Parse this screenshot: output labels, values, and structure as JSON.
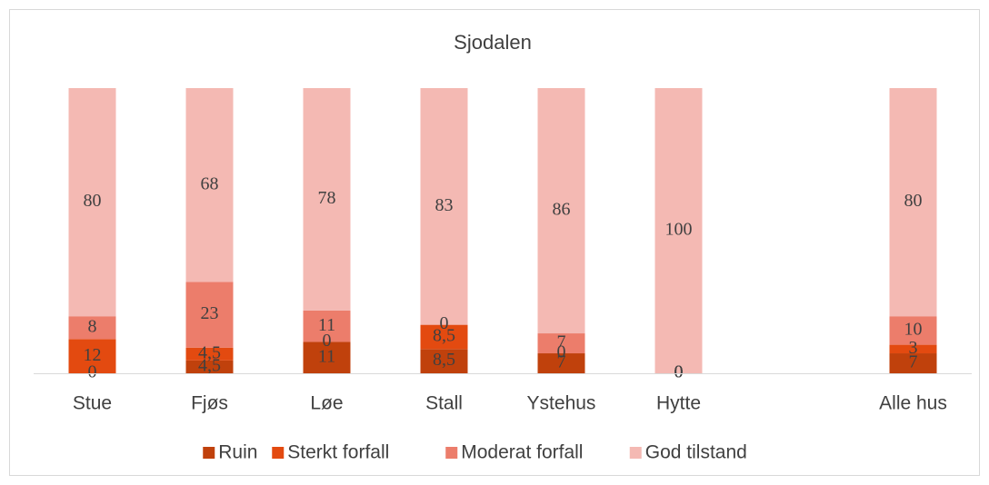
{
  "chart_data": {
    "type": "stacked_bar",
    "title": "Sjodalen",
    "categories": [
      "Stue",
      "Fjøs",
      "Løe",
      "Stall",
      "Ystehus",
      "Hytte",
      null,
      "Alle hus"
    ],
    "ylim": [
      0,
      100
    ],
    "series": [
      {
        "name": "Ruin",
        "color": "#c0410c",
        "values": [
          0,
          4.5,
          11,
          8.5,
          7,
          0,
          null,
          7
        ],
        "value_labels": [
          "0",
          "4,5",
          "11",
          "8,5",
          "7",
          "0",
          null,
          "7"
        ]
      },
      {
        "name": "Sterkt forfall",
        "color": "#e34a10",
        "values": [
          12,
          4.5,
          0,
          8.5,
          0,
          0,
          null,
          3
        ],
        "value_labels": [
          "12",
          "4,5",
          "0",
          "8,5",
          "0",
          "0",
          null,
          "3"
        ]
      },
      {
        "name": "Moderat forfall",
        "color": "#ec7d6b",
        "values": [
          8,
          23,
          11,
          0,
          7,
          0,
          null,
          10
        ],
        "value_labels": [
          "8",
          "23",
          "11",
          "0",
          "7",
          "0",
          null,
          "10"
        ]
      },
      {
        "name": "God tilstand",
        "color": "#f4b9b3",
        "values": [
          80,
          68,
          78,
          83,
          86,
          100,
          null,
          80
        ],
        "value_labels": [
          "80",
          "68",
          "78",
          "83",
          "86",
          "100",
          null,
          "80"
        ]
      }
    ]
  }
}
